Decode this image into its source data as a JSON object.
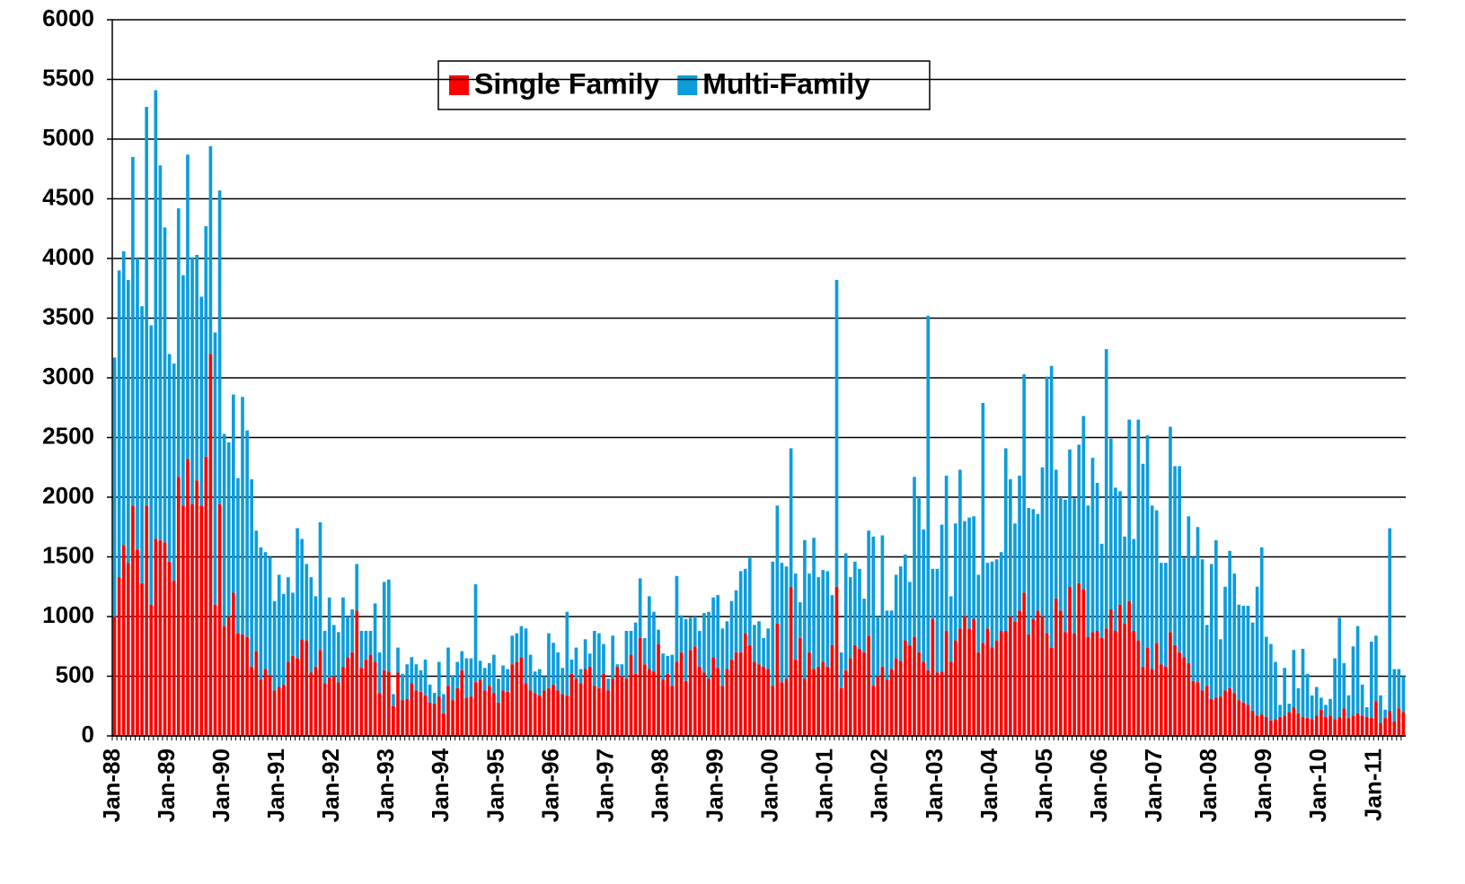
{
  "chart_data": {
    "type": "stacked-bar",
    "categories": [
      "Jan-88",
      null,
      null,
      null,
      null,
      null,
      null,
      null,
      null,
      null,
      null,
      null,
      "Jan-89",
      null,
      null,
      null,
      null,
      null,
      null,
      null,
      null,
      null,
      null,
      null,
      "Jan-90",
      null,
      null,
      null,
      null,
      null,
      null,
      null,
      null,
      null,
      null,
      null,
      "Jan-91",
      null,
      null,
      null,
      null,
      null,
      null,
      null,
      null,
      null,
      null,
      null,
      "Jan-92",
      null,
      null,
      null,
      null,
      null,
      null,
      null,
      null,
      null,
      null,
      null,
      "Jan-93",
      null,
      null,
      null,
      null,
      null,
      null,
      null,
      null,
      null,
      null,
      null,
      "Jan-94",
      null,
      null,
      null,
      null,
      null,
      null,
      null,
      null,
      null,
      null,
      null,
      "Jan-95",
      null,
      null,
      null,
      null,
      null,
      null,
      null,
      null,
      null,
      null,
      null,
      "Jan-96",
      null,
      null,
      null,
      null,
      null,
      null,
      null,
      null,
      null,
      null,
      null,
      "Jan-97",
      null,
      null,
      null,
      null,
      null,
      null,
      null,
      null,
      null,
      null,
      null,
      "Jan-98",
      null,
      null,
      null,
      null,
      null,
      null,
      null,
      null,
      null,
      null,
      null,
      "Jan-99",
      null,
      null,
      null,
      null,
      null,
      null,
      null,
      null,
      null,
      null,
      null,
      "Jan-00",
      null,
      null,
      null,
      null,
      null,
      null,
      null,
      null,
      null,
      null,
      null,
      "Jan-01",
      null,
      null,
      null,
      null,
      null,
      null,
      null,
      null,
      null,
      null,
      null,
      "Jan-02",
      null,
      null,
      null,
      null,
      null,
      null,
      null,
      null,
      null,
      null,
      null,
      "Jan-03",
      null,
      null,
      null,
      null,
      null,
      null,
      null,
      null,
      null,
      null,
      null,
      "Jan-04",
      null,
      null,
      null,
      null,
      null,
      null,
      null,
      null,
      null,
      null,
      null,
      "Jan-05",
      null,
      null,
      null,
      null,
      null,
      null,
      null,
      null,
      null,
      null,
      null,
      "Jan-06",
      null,
      null,
      null,
      null,
      null,
      null,
      null,
      null,
      null,
      null,
      null,
      "Jan-07",
      null,
      null,
      null,
      null,
      null,
      null,
      null,
      null,
      null,
      null,
      null,
      "Jan-08",
      null,
      null,
      null,
      null,
      null,
      null,
      null,
      null,
      null,
      null,
      null,
      "Jan-09",
      null,
      null,
      null,
      null,
      null,
      null,
      null,
      null,
      null,
      null,
      null,
      "Jan-10",
      null,
      null,
      null,
      null,
      null,
      null,
      null,
      null,
      null,
      null,
      null,
      "Jan-11",
      null,
      null,
      null,
      null,
      null,
      null
    ],
    "series": [
      {
        "name": "Single Family",
        "color": "#ff0000",
        "values": [
          1000,
          1330,
          1600,
          1450,
          1930,
          1560,
          1280,
          1930,
          1100,
          1650,
          1640,
          1620,
          1460,
          1300,
          2170,
          1930,
          2320,
          1940,
          2140,
          1930,
          2340,
          3200,
          1100,
          1940,
          920,
          1000,
          1200,
          860,
          850,
          830,
          580,
          710,
          470,
          560,
          510,
          380,
          410,
          430,
          620,
          670,
          650,
          810,
          800,
          530,
          580,
          720,
          440,
          490,
          500,
          450,
          580,
          660,
          700,
          1050,
          570,
          640,
          680,
          620,
          360,
          550,
          540,
          250,
          530,
          300,
          310,
          440,
          380,
          370,
          340,
          280,
          270,
          330,
          190,
          420,
          300,
          400,
          550,
          320,
          330,
          450,
          470,
          380,
          420,
          360,
          280,
          380,
          370,
          600,
          620,
          660,
          440,
          380,
          360,
          340,
          380,
          400,
          430,
          380,
          350,
          340,
          520,
          480,
          440,
          560,
          580,
          420,
          400,
          520,
          380,
          480,
          580,
          500,
          480,
          680,
          520,
          820,
          600,
          560,
          540,
          770,
          470,
          520,
          420,
          620,
          700,
          460,
          720,
          750,
          580,
          530,
          480,
          660,
          570,
          420,
          560,
          640,
          700,
          700,
          860,
          760,
          620,
          600,
          580,
          560,
          420,
          940,
          450,
          480,
          1250,
          640,
          820,
          480,
          700,
          560,
          580,
          620,
          580,
          760,
          1250,
          400,
          550,
          650,
          760,
          730,
          700,
          840,
          420,
          500,
          580,
          470,
          560,
          650,
          630,
          800,
          760,
          830,
          700,
          620,
          550,
          980,
          530,
          540,
          880,
          620,
          800,
          900,
          1000,
          900,
          980,
          700,
          780,
          900,
          740,
          800,
          880,
          880,
          1000,
          960,
          1050,
          1200,
          850,
          980,
          1050,
          1000,
          860,
          740,
          1150,
          1050,
          870,
          1250,
          860,
          1280,
          1230,
          830,
          870,
          880,
          820,
          900,
          1060,
          880,
          1100,
          940,
          1130,
          880,
          800,
          580,
          740,
          560,
          780,
          600,
          580,
          870,
          760,
          700,
          660,
          610,
          460,
          450,
          380,
          420,
          310,
          320,
          330,
          380,
          400,
          360,
          300,
          280,
          260,
          210,
          170,
          180,
          160,
          130,
          140,
          160,
          170,
          200,
          240,
          190,
          160,
          150,
          140,
          170,
          220,
          160,
          170,
          140,
          160,
          230,
          150,
          170,
          190,
          170,
          160,
          150,
          290,
          110,
          150,
          210,
          120,
          230,
          200
        ]
      },
      {
        "name": "Multi-Family",
        "color": "#0d9ddb",
        "values": [
          2170,
          2570,
          2460,
          2370,
          2920,
          2440,
          2320,
          3340,
          2340,
          3760,
          3140,
          2640,
          1740,
          1820,
          2250,
          1930,
          2550,
          2070,
          1890,
          1750,
          1930,
          1740,
          2280,
          2630,
          1610,
          1460,
          1660,
          1300,
          1990,
          1730,
          1570,
          1010,
          1110,
          980,
          990,
          750,
          940,
          760,
          710,
          530,
          1090,
          840,
          640,
          800,
          590,
          1070,
          440,
          670,
          430,
          420,
          580,
          340,
          360,
          390,
          310,
          240,
          200,
          490,
          340,
          740,
          770,
          100,
          210,
          220,
          290,
          220,
          220,
          180,
          300,
          150,
          90,
          290,
          160,
          320,
          210,
          220,
          160,
          330,
          320,
          820,
          160,
          190,
          190,
          320,
          200,
          210,
          190,
          240,
          240,
          260,
          460,
          300,
          180,
          220,
          120,
          460,
          350,
          320,
          220,
          700,
          120,
          260,
          120,
          250,
          110,
          460,
          460,
          250,
          100,
          360,
          20,
          100,
          400,
          200,
          430,
          500,
          220,
          610,
          500,
          120,
          220,
          150,
          260,
          720,
          310,
          520,
          270,
          250,
          300,
          500,
          560,
          500,
          610,
          480,
          400,
          490,
          520,
          680,
          540,
          730,
          310,
          360,
          240,
          340,
          1040,
          990,
          1000,
          940,
          1160,
          720,
          300,
          1160,
          660,
          1100,
          750,
          770,
          800,
          420,
          2570,
          300,
          980,
          680,
          700,
          670,
          450,
          880,
          1250,
          500,
          1100,
          580,
          490,
          700,
          790,
          720,
          530,
          1340,
          1300,
          1110,
          2970,
          420,
          870,
          1230,
          1300,
          550,
          980,
          1330,
          800,
          930,
          860,
          650,
          2010,
          550,
          720,
          680,
          660,
          1530,
          1150,
          820,
          1130,
          1830,
          1060,
          920,
          810,
          1250,
          2150,
          2360,
          1080,
          950,
          1110,
          1150,
          1130,
          1160,
          1450,
          1100,
          1460,
          1240,
          790,
          2340,
          1430,
          1200,
          950,
          730,
          1520,
          770,
          1850,
          1700,
          1780,
          1370,
          1110,
          850,
          870,
          1720,
          1500,
          1560,
          830,
          1230,
          1040,
          1300,
          1100,
          510,
          1130,
          1320,
          480,
          870,
          1150,
          1000,
          800,
          810,
          830,
          740,
          1080,
          1400,
          670,
          640,
          480,
          100,
          400,
          70,
          480,
          210,
          570,
          370,
          200,
          240,
          100,
          100,
          140,
          510,
          830,
          380,
          190,
          580,
          730,
          260,
          80,
          640,
          550,
          230,
          70,
          1530,
          440,
          330,
          300
        ]
      }
    ],
    "ylim": [
      0,
      6000
    ],
    "yticks": [
      0,
      500,
      1000,
      1500,
      2000,
      2500,
      3000,
      3500,
      4000,
      4500,
      5000,
      5500,
      6000
    ],
    "grid": true
  }
}
